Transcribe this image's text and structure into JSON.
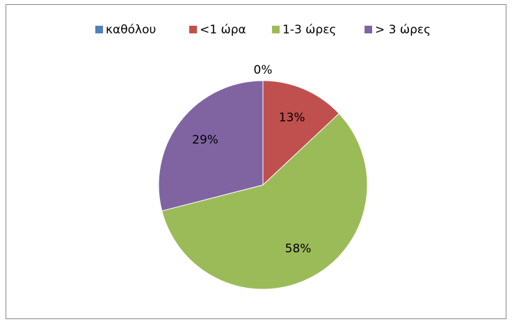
{
  "chart_data": {
    "type": "pie",
    "categories": [
      "καθόλου",
      "<1 ώρα",
      "1-3 ώρες",
      "> 3 ώρες"
    ],
    "values": [
      0,
      13,
      58,
      29
    ],
    "value_labels": [
      "0%",
      "13%",
      "58%",
      "29%"
    ],
    "colors": [
      "#4f81bd",
      "#c0504d",
      "#9bbb59",
      "#8064a2"
    ],
    "legend": "top"
  }
}
